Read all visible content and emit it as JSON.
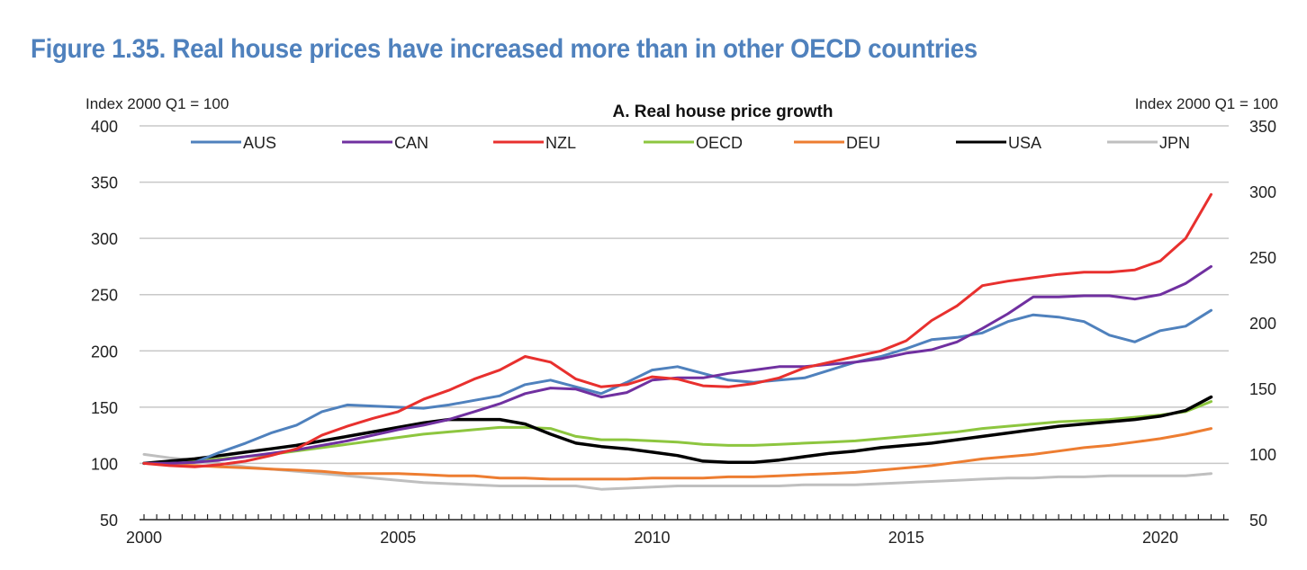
{
  "figure_title": "Figure 1.35. Real house prices have increased more than in other OECD countries",
  "chart_data": {
    "type": "line",
    "title": "A. Real house price growth",
    "ylabel_left": "Index 2000 Q1 = 100",
    "ylabel_right": "Index 2000 Q1 = 100",
    "xlabel": "",
    "xlim": [
      2000,
      2021.25
    ],
    "ylim_left": [
      50,
      400
    ],
    "ylim_right": [
      50,
      350
    ],
    "yticks_left": [
      50,
      100,
      150,
      200,
      250,
      300,
      350,
      400
    ],
    "yticks_right": [
      50,
      100,
      150,
      200,
      250,
      300,
      350
    ],
    "xticks": [
      2000,
      2005,
      2010,
      2015,
      2020
    ],
    "xtick_labels": [
      "2000",
      "2005",
      "2010",
      "2015",
      "2020"
    ],
    "x_minor_ticks": "quarterly",
    "grid": "horizontal",
    "legend_position": "top",
    "x": [
      2000,
      2000.5,
      2001,
      2001.5,
      2002,
      2002.5,
      2003,
      2003.5,
      2004,
      2004.5,
      2005,
      2005.5,
      2006,
      2006.5,
      2007,
      2007.5,
      2008,
      2008.5,
      2009,
      2009.5,
      2010,
      2010.5,
      2011,
      2011.5,
      2012,
      2012.5,
      2013,
      2013.5,
      2014,
      2014.5,
      2015,
      2015.5,
      2016,
      2016.5,
      2017,
      2017.5,
      2018,
      2018.5,
      2019,
      2019.5,
      2020,
      2020.5,
      2021
    ],
    "series": [
      {
        "name": "AUS",
        "color": "#4f81bd",
        "values": [
          100,
          100,
          101,
          110,
          118,
          127,
          134,
          146,
          152,
          151,
          150,
          149,
          152,
          156,
          160,
          170,
          174,
          168,
          162,
          172,
          183,
          186,
          180,
          174,
          172,
          174,
          176,
          183,
          190,
          195,
          202,
          210,
          212,
          216,
          226,
          232,
          230,
          226,
          214,
          208,
          218,
          222,
          236
        ]
      },
      {
        "name": "CAN",
        "color": "#7030a0",
        "values": [
          100,
          100,
          101,
          103,
          106,
          109,
          112,
          116,
          120,
          125,
          130,
          134,
          139,
          146,
          153,
          162,
          167,
          166,
          159,
          163,
          174,
          176,
          176,
          180,
          183,
          186,
          186,
          188,
          190,
          193,
          198,
          201,
          208,
          220,
          233,
          248,
          248,
          249,
          249,
          246,
          250,
          260,
          275
        ]
      },
      {
        "name": "NZL",
        "color": "#e8302e",
        "values": [
          100,
          98,
          97,
          99,
          102,
          107,
          113,
          125,
          133,
          140,
          146,
          157,
          165,
          175,
          183,
          195,
          190,
          175,
          168,
          170,
          177,
          175,
          169,
          168,
          171,
          176,
          185,
          190,
          195,
          200,
          209,
          227,
          240,
          258,
          262,
          265,
          268,
          270,
          270,
          272,
          280,
          300,
          339
        ]
      },
      {
        "name": "OECD",
        "color": "#8dc63f",
        "values": [
          100,
          101,
          102,
          104,
          106,
          108,
          111,
          114,
          117,
          120,
          123,
          126,
          128,
          130,
          132,
          132,
          131,
          124,
          121,
          121,
          120,
          119,
          117,
          116,
          116,
          117,
          118,
          119,
          120,
          122,
          124,
          126,
          128,
          131,
          133,
          135,
          137,
          138,
          139,
          141,
          143,
          146,
          155
        ]
      },
      {
        "name": "DEU",
        "color": "#ed7d31",
        "values": [
          100,
          99,
          98,
          97,
          96,
          95,
          94,
          93,
          91,
          91,
          91,
          90,
          89,
          89,
          87,
          87,
          86,
          86,
          86,
          86,
          87,
          87,
          87,
          88,
          88,
          89,
          90,
          91,
          92,
          94,
          96,
          98,
          101,
          104,
          106,
          108,
          111,
          114,
          116,
          119,
          122,
          126,
          131
        ]
      },
      {
        "name": "USA",
        "color": "#000000",
        "values": [
          100,
          102,
          104,
          107,
          110,
          113,
          116,
          120,
          124,
          128,
          132,
          136,
          139,
          139,
          139,
          135,
          126,
          118,
          115,
          113,
          110,
          107,
          102,
          101,
          101,
          103,
          106,
          109,
          111,
          114,
          116,
          118,
          121,
          124,
          127,
          130,
          133,
          135,
          137,
          139,
          142,
          147,
          159
        ]
      },
      {
        "name": "JPN",
        "color": "#bfbfbf",
        "values": [
          108,
          105,
          103,
          100,
          97,
          95,
          93,
          91,
          89,
          87,
          85,
          83,
          82,
          81,
          80,
          80,
          80,
          80,
          77,
          78,
          79,
          80,
          80,
          80,
          80,
          80,
          81,
          81,
          81,
          82,
          83,
          84,
          85,
          86,
          87,
          87,
          88,
          88,
          89,
          89,
          89,
          89,
          91
        ]
      }
    ]
  }
}
